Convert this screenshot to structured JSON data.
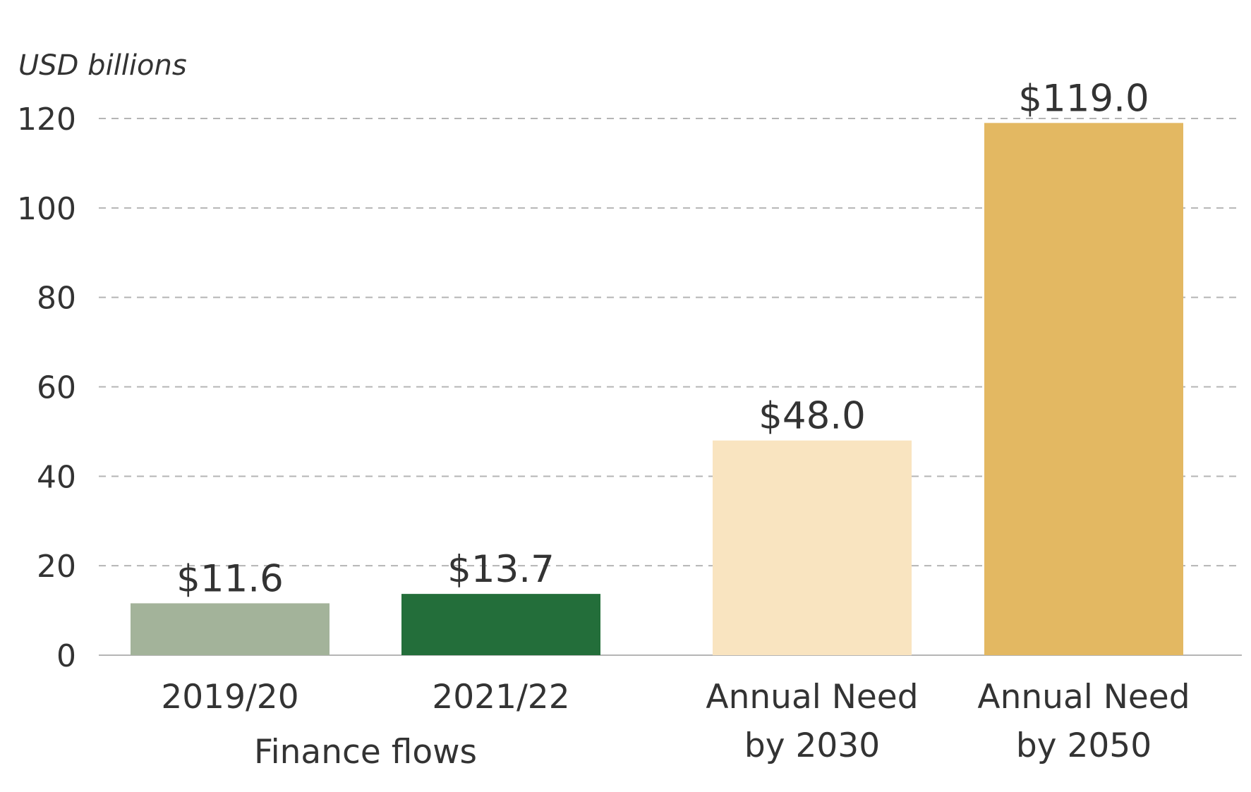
{
  "chart_data": {
    "type": "bar",
    "ylabel": "USD billions",
    "ylim": [
      0,
      120
    ],
    "yticks": [
      0,
      20,
      40,
      60,
      80,
      100,
      120
    ],
    "grid": true,
    "categories": [
      {
        "lines": [
          "2019/20"
        ],
        "value": 11.6,
        "value_label": "$11.6",
        "color": "#a3b39a"
      },
      {
        "lines": [
          "2021/22"
        ],
        "value": 13.7,
        "value_label": "$13.7",
        "color": "#236e3a"
      },
      {
        "lines": [
          "Annual Need",
          "by 2030"
        ],
        "value": 48.0,
        "value_label": "$48.0",
        "color": "#f9e4c0"
      },
      {
        "lines": [
          "Annual Need",
          "by 2050"
        ],
        "value": 119.0,
        "value_label": "$119.0",
        "color": "#e3b862"
      }
    ],
    "group_labels": [
      {
        "text": "Finance flows",
        "categories": [
          0,
          1
        ]
      }
    ]
  }
}
